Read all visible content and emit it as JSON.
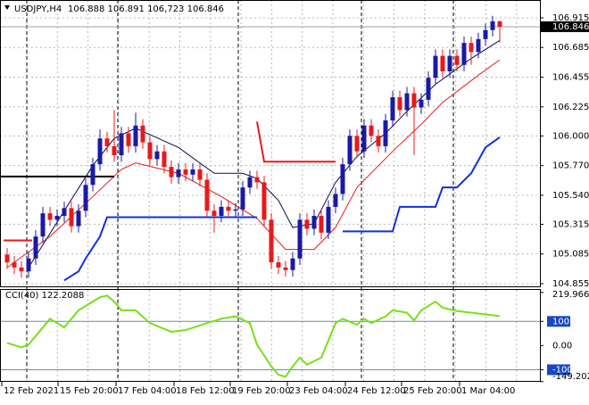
{
  "chart_data": [
    {
      "type": "candlestick",
      "symbol": "USDJPY,H4",
      "quote": "106.888 106.891 106,723 106.846",
      "open": [
        105.08,
        105.02,
        104.98,
        104.95,
        105.05,
        105.22,
        105.4,
        105.35,
        105.38,
        105.44,
        105.3,
        105.42,
        105.62,
        105.78,
        105.98,
        105.92,
        105.85,
        106.02,
        105.92,
        106.08,
        105.95,
        105.82,
        105.88,
        105.76,
        105.68,
        105.74,
        105.7,
        105.74,
        105.66,
        105.42,
        105.38,
        105.45,
        105.42,
        105.43,
        105.6,
        105.68,
        105.64,
        105.35,
        105.02,
        104.98,
        104.96,
        105.05,
        105.35,
        105.28,
        105.38,
        105.25,
        105.45,
        105.55,
        105.78,
        106.0,
        105.88,
        106.08,
        106.0,
        105.92,
        106.12,
        106.3,
        106.2,
        106.33,
        106.22,
        106.28,
        106.45,
        106.62,
        106.5,
        106.62,
        106.55,
        106.72,
        106.65,
        106.75,
        106.82,
        106.888
      ],
      "high": [
        105.13,
        105.07,
        105.03,
        105.1,
        105.27,
        105.45,
        105.45,
        105.43,
        105.49,
        105.49,
        105.47,
        105.67,
        105.83,
        106.05,
        106.03,
        106.2,
        106.07,
        106.07,
        106.18,
        106.13,
        106.0,
        105.93,
        105.93,
        105.81,
        105.79,
        105.79,
        105.79,
        105.79,
        105.71,
        105.47,
        105.5,
        105.5,
        105.48,
        105.65,
        105.73,
        105.73,
        105.69,
        105.4,
        105.07,
        105.03,
        105.1,
        105.4,
        105.4,
        105.43,
        105.43,
        105.5,
        105.6,
        105.83,
        106.05,
        106.05,
        106.13,
        106.13,
        106.05,
        106.17,
        106.35,
        106.35,
        106.38,
        106.38,
        106.33,
        106.5,
        106.67,
        106.67,
        106.67,
        106.67,
        106.77,
        106.77,
        106.8,
        106.87,
        106.93,
        106.891
      ],
      "low": [
        104.97,
        104.93,
        104.9,
        104.9,
        105.0,
        105.17,
        105.3,
        105.3,
        105.33,
        105.25,
        105.25,
        105.37,
        105.57,
        105.73,
        105.87,
        105.8,
        105.8,
        105.87,
        105.87,
        105.9,
        105.77,
        105.77,
        105.71,
        105.63,
        105.63,
        105.65,
        105.65,
        105.61,
        105.37,
        105.25,
        105.33,
        105.37,
        105.37,
        105.38,
        105.55,
        105.59,
        105.3,
        104.97,
        104.93,
        104.91,
        104.91,
        105.0,
        105.23,
        105.23,
        105.2,
        105.2,
        105.4,
        105.5,
        105.73,
        105.83,
        105.83,
        105.95,
        105.87,
        105.87,
        106.07,
        106.15,
        106.15,
        105.85,
        106.17,
        106.23,
        106.4,
        106.45,
        106.45,
        106.5,
        106.5,
        106.55,
        106.6,
        106.7,
        106.77,
        106.723
      ],
      "close": [
        105.02,
        104.98,
        104.95,
        105.05,
        105.22,
        105.4,
        105.35,
        105.38,
        105.44,
        105.3,
        105.42,
        105.62,
        105.78,
        105.98,
        105.92,
        105.85,
        106.02,
        105.92,
        106.08,
        105.95,
        105.82,
        105.88,
        105.76,
        105.68,
        105.74,
        105.7,
        105.74,
        105.66,
        105.42,
        105.38,
        105.45,
        105.42,
        105.43,
        105.6,
        105.68,
        105.64,
        105.35,
        105.02,
        104.98,
        104.96,
        105.05,
        105.35,
        105.28,
        105.38,
        105.25,
        105.45,
        105.55,
        105.78,
        106.0,
        105.88,
        106.08,
        106.0,
        105.92,
        106.12,
        106.3,
        106.2,
        106.33,
        106.22,
        106.28,
        106.45,
        106.62,
        106.5,
        106.62,
        106.55,
        106.72,
        106.65,
        106.75,
        106.82,
        106.888,
        106.846
      ],
      "up_color": "#1a1aa6",
      "down_color": "#e8191c",
      "series": [
        {
          "color": "#e8191c",
          "x": [
            0,
            6,
            12,
            16,
            18,
            24,
            30,
            35,
            39,
            43,
            46,
            49,
            54,
            58,
            61,
            66,
            69
          ],
          "values": [
            104.98,
            105.22,
            105.53,
            105.74,
            105.79,
            105.71,
            105.53,
            105.36,
            105.12,
            105.12,
            105.29,
            105.6,
            105.88,
            106.09,
            106.26,
            106.47,
            106.59
          ]
        },
        {
          "color": "#0a0a55",
          "x": [
            3,
            12,
            15,
            18,
            24,
            29,
            33,
            35,
            38,
            40,
            43,
            46,
            49,
            53,
            56,
            60,
            65,
            69
          ],
          "values": [
            104.98,
            105.77,
            105.98,
            106.06,
            105.91,
            105.71,
            105.71,
            105.67,
            105.5,
            105.29,
            105.32,
            105.64,
            105.84,
            106.02,
            106.19,
            106.4,
            106.6,
            106.74
          ]
        },
        {
          "color": "#1030e0",
          "width": 2,
          "x": [
            8,
            10,
            11,
            13,
            14,
            35,
            36,
            47,
            54,
            55,
            60,
            61,
            63,
            65,
            67,
            69
          ],
          "values": [
            104.88,
            104.95,
            105.05,
            105.22,
            105.37,
            105.37,
            null,
            105.26,
            105.26,
            105.45,
            105.45,
            105.6,
            105.6,
            105.71,
            105.91,
            105.99
          ]
        },
        {
          "color": "#e8191c",
          "width": 2,
          "x": [
            35,
            36,
            46
          ],
          "values": [
            106.11,
            105.8,
            105.8
          ]
        },
        {
          "color": "#000000",
          "width": 2,
          "x": [
            -1,
            15
          ],
          "values": [
            105.685,
            105.685
          ]
        },
        {
          "color": "#e8191c",
          "width": 2,
          "x": [
            -0.5,
            3.5
          ],
          "values": [
            105.19,
            105.19
          ]
        }
      ],
      "last_price": 106.846,
      "xlim": [
        -1,
        74.625
      ],
      "ylim": [
        104.827,
        107.053
      ],
      "yticks": [
        106.915,
        106.685,
        106.455,
        106.225,
        {
          "value": 106,
          "label": "106.000"
        },
        {
          "value": 105.77,
          "label": "105.770"
        },
        {
          "value": 105.54,
          "label": "105.540"
        },
        105.315,
        105.085,
        104.855
      ],
      "xticks": [
        {
          "value": -0.75,
          "label": "12 Feb 2021"
        },
        {
          "value": 7.125,
          "label": "15 Feb 20:00"
        },
        {
          "value": 15.25,
          "label": "17 Feb 04:00"
        },
        {
          "value": 23.375,
          "label": "18 Feb 12:00"
        },
        {
          "value": 31.25,
          "label": "19 Feb 20:00"
        },
        {
          "value": 39.25,
          "label": "23 Feb 04:00"
        },
        {
          "value": 47.375,
          "label": "24 Feb 12:00"
        },
        {
          "value": 55.25,
          "label": "25 Feb 20:00"
        },
        {
          "value": 63.375,
          "label": "1 Mar 04:00"
        }
      ],
      "separators": [
        2.75,
        15.5,
        32.375,
        49.625,
        62.5
      ],
      "grid": true
    },
    {
      "type": "line",
      "title": "CCI(40) 122.2088",
      "color": "#77e01a",
      "x": [
        0,
        2,
        3,
        5,
        6,
        8,
        9,
        10,
        11,
        13,
        14,
        15,
        16,
        18,
        20,
        23,
        25,
        28,
        30,
        32,
        34,
        35,
        37,
        38,
        39,
        40,
        41,
        42,
        44,
        45,
        46,
        47,
        49,
        50,
        51,
        53,
        54,
        56,
        57,
        58,
        60,
        61,
        63,
        65,
        69
      ],
      "values": [
        11,
        -7,
        4,
        75,
        111,
        75,
        111,
        146,
        164,
        200,
        207,
        182,
        146,
        146,
        93,
        57,
        64,
        93,
        111,
        121,
        93,
        4,
        -86,
        -121,
        -129,
        -86,
        -50,
        -79,
        -50,
        21,
        93,
        111,
        86,
        111,
        93,
        121,
        146,
        136,
        104,
        146,
        182,
        157,
        143,
        136,
        122
      ],
      "ylim": [
        -150,
        234
      ],
      "yticks": [
        219.9663,
        {
          "value": 100,
          "label": "100",
          "boxed": true
        },
        {
          "value": 0,
          "label": "0.00"
        },
        {
          "value": -100,
          "label": "-100",
          "boxed": true
        },
        -149.2024
      ]
    }
  ]
}
